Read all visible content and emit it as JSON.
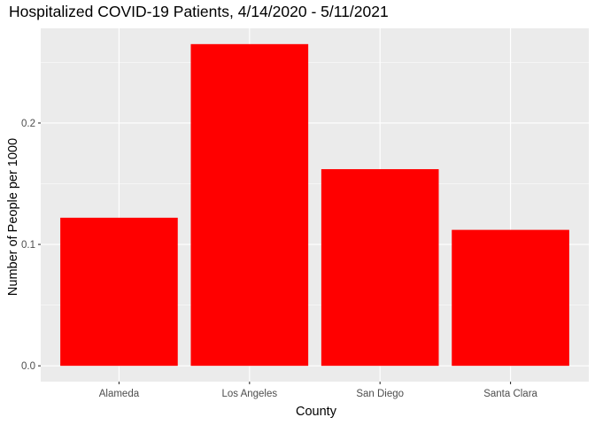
{
  "chart_data": {
    "type": "bar",
    "title": "Hospitalized COVID-19 Patients, 4/14/2020 - 5/11/2021",
    "xlabel": "County",
    "ylabel": "Number of People per 1000",
    "categories": [
      "Alameda",
      "Los Angeles",
      "San Diego",
      "Santa Clara"
    ],
    "values": [
      0.122,
      0.265,
      0.162,
      0.112
    ],
    "ylim": [
      -0.013,
      0.278
    ],
    "y_ticks": [
      {
        "value": 0.0,
        "label": "0.0"
      },
      {
        "value": 0.1,
        "label": "0.1"
      },
      {
        "value": 0.2,
        "label": "0.2"
      }
    ],
    "bar_color": "#ff0000",
    "panel_background": "#ebebeb",
    "grid_color": "#ffffff",
    "grid": true,
    "legend": "none"
  }
}
